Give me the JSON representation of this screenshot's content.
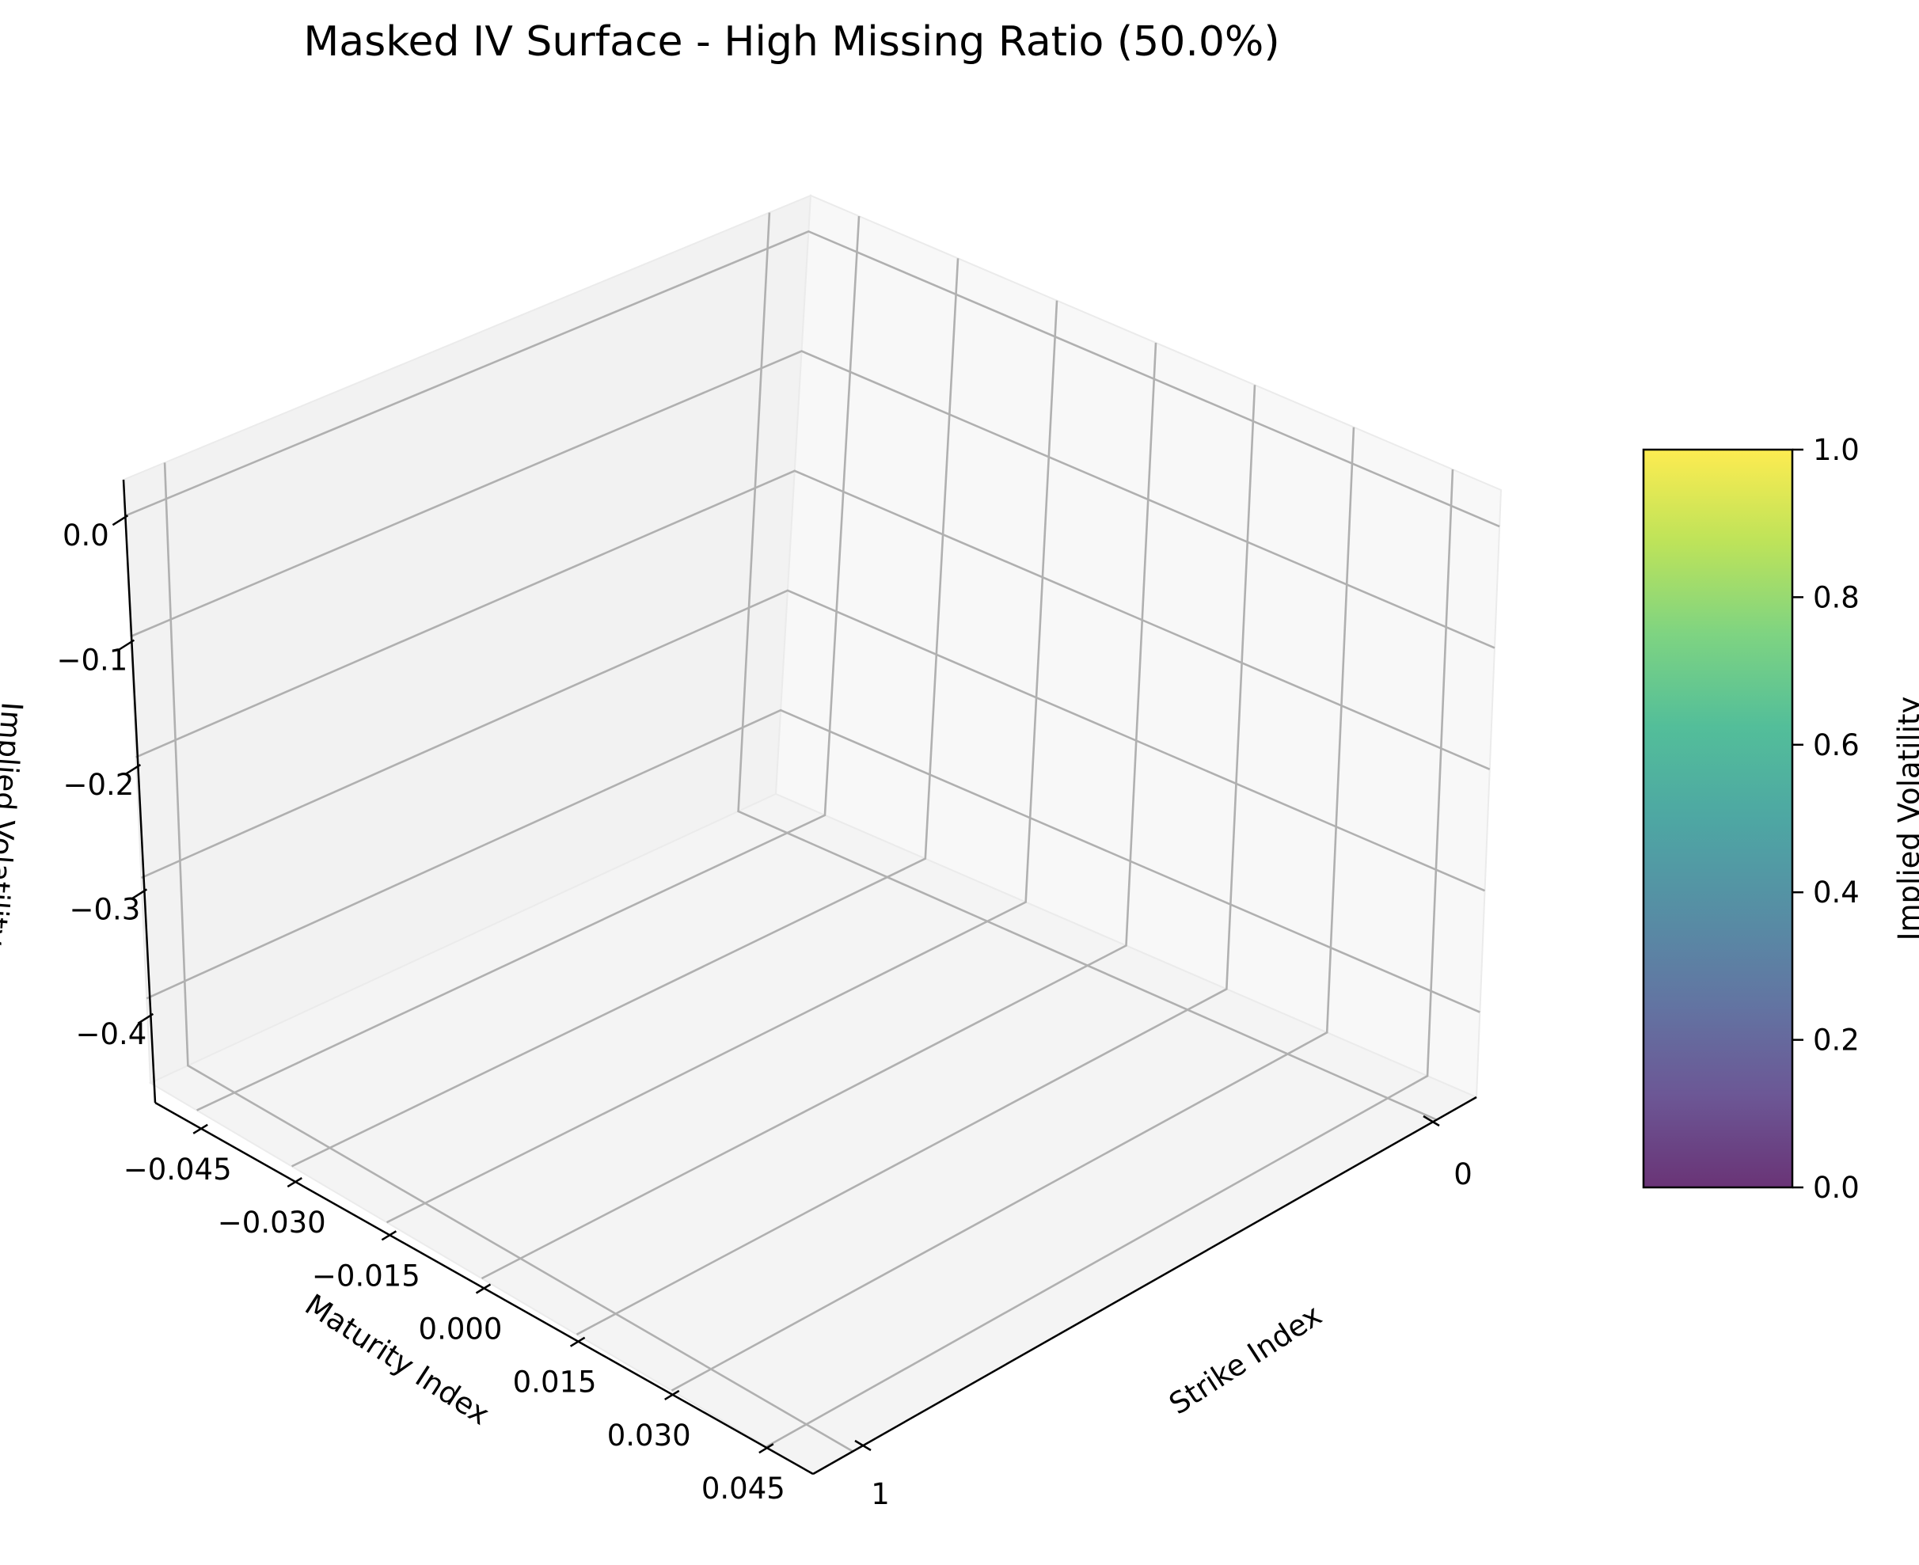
{
  "chart_data": {
    "type": "surface3d",
    "title": "Masked IV Surface - High Missing Ratio (50.0%)",
    "xlabel": "Strike Index",
    "ylabel": "Maturity Index",
    "zlabel": "Implied Volatility",
    "x_ticks": [
      "0",
      "1"
    ],
    "y_ticks": [
      "−0.045",
      "−0.030",
      "−0.015",
      "0.000",
      "0.015",
      "0.030",
      "0.045"
    ],
    "z_ticks": [
      "0.0",
      "−0.1",
      "−0.2",
      "−0.3",
      "−0.4"
    ],
    "xlim": [
      0,
      1
    ],
    "ylim": [
      -0.05,
      0.05
    ],
    "zlim": [
      -0.47,
      0.03
    ],
    "surface_points": [],
    "grid": true,
    "colorbar": {
      "label": "Implied Volatility",
      "ticks": [
        "0.0",
        "0.2",
        "0.4",
        "0.6",
        "0.8",
        "1.0"
      ],
      "range": [
        0,
        1
      ],
      "colormap": "viridis",
      "colors": [
        "#440154",
        "#472d7b",
        "#3b528b",
        "#2c728e",
        "#21918c",
        "#28ae80",
        "#5ec962",
        "#addc30",
        "#fde725"
      ],
      "alpha": 0.8
    }
  }
}
